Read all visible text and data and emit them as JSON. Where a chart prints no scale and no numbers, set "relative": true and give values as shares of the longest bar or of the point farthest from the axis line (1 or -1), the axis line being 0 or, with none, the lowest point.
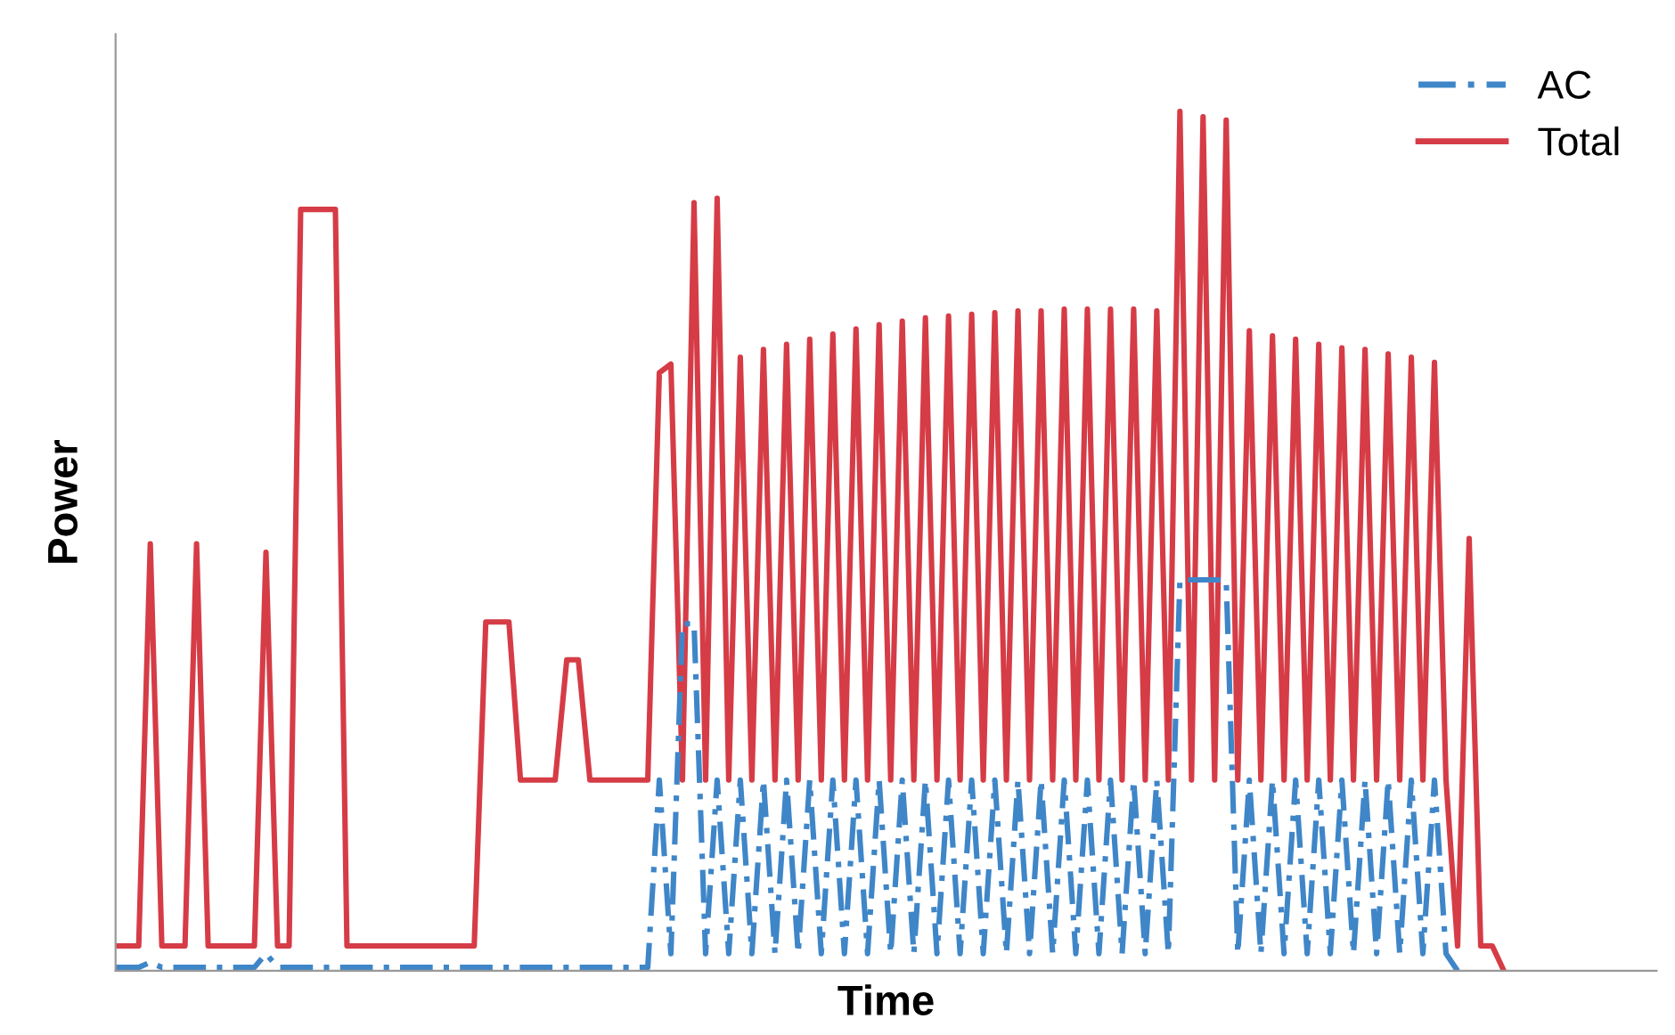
{
  "chart_data": {
    "type": "line",
    "relative": true,
    "xlabel": "Time",
    "ylabel": "Power",
    "categories": [
      null,
      null,
      null,
      null,
      null,
      null,
      null,
      null,
      null,
      null,
      null,
      null,
      null,
      null,
      null,
      null,
      null,
      null,
      null,
      null,
      null,
      null,
      null,
      null,
      null,
      null,
      null,
      null,
      null,
      null,
      null,
      null,
      null,
      null,
      null,
      null,
      null,
      null,
      null,
      null,
      null,
      null,
      null,
      null,
      null,
      null,
      null,
      null,
      null,
      null,
      null,
      null,
      null,
      null,
      null,
      null,
      null,
      null,
      null,
      null,
      null,
      null,
      null,
      null,
      null,
      null,
      null,
      null,
      null,
      null,
      null,
      null,
      null,
      null,
      null,
      null,
      null,
      null,
      null,
      null,
      null,
      null,
      null,
      null,
      null,
      null,
      null,
      null,
      null,
      null,
      null,
      null,
      null,
      null,
      null,
      null,
      null,
      null,
      null,
      null,
      null,
      null,
      null,
      null,
      null,
      null,
      null,
      null,
      null,
      null,
      null,
      null,
      null,
      null,
      null,
      null,
      null,
      null,
      null,
      null,
      null
    ],
    "legend": "top right",
    "series": [
      {
        "name": "AC",
        "color": "#3f86c8",
        "line_style": "dashed",
        "values": [
          0.004,
          0.004,
          0.004,
          0.01,
          0.004,
          0.004,
          0.004,
          0.004,
          0.004,
          0.004,
          0.004,
          0.004,
          0.004,
          0.02,
          0.004,
          0.004,
          0.004,
          0.004,
          0.004,
          0.004,
          0.004,
          0.004,
          0.004,
          0.004,
          0.004,
          0.004,
          0.004,
          0.004,
          0.004,
          0.004,
          0.004,
          0.004,
          0.004,
          0.004,
          0.004,
          0.004,
          0.004,
          0.004,
          0.004,
          0.004,
          0.004,
          0.004,
          0.004,
          0.004,
          0.004,
          0.004,
          0.004,
          0.222,
          0.02,
          0.404,
          0.404,
          0.02,
          0.222,
          0.02,
          0.222,
          0.02,
          0.222,
          0.02,
          0.222,
          0.02,
          0.222,
          0.02,
          0.222,
          0.02,
          0.222,
          0.02,
          0.222,
          0.02,
          0.222,
          0.02,
          0.222,
          0.02,
          0.222,
          0.02,
          0.222,
          0.02,
          0.222,
          0.02,
          0.222,
          0.02,
          0.222,
          0.02,
          0.222,
          0.02,
          0.222,
          0.02,
          0.222,
          0.02,
          0.222,
          0.02,
          0.222,
          0.02,
          0.455,
          0.455,
          0.455,
          0.455,
          0.455,
          0.02,
          0.222,
          0.02,
          0.222,
          0.02,
          0.222,
          0.02,
          0.222,
          0.02,
          0.222,
          0.02,
          0.222,
          0.02,
          0.222,
          0.02,
          0.222,
          0.02,
          0.222,
          0.02,
          0,
          null,
          null,
          null,
          null
        ]
      },
      {
        "name": "Total",
        "color": "#d63c46",
        "line_style": "solid",
        "values": [
          0.029,
          0.029,
          0.029,
          0.497,
          0.029,
          0.029,
          0.029,
          0.497,
          0.029,
          0.029,
          0.029,
          0.029,
          0.029,
          0.487,
          0.029,
          0.029,
          0.886,
          0.886,
          0.886,
          0.886,
          0.029,
          0.029,
          0.029,
          0.029,
          0.029,
          0.029,
          0.029,
          0.029,
          0.029,
          0.029,
          0.029,
          0.029,
          0.406,
          0.406,
          0.406,
          0.222,
          0.222,
          0.222,
          0.222,
          0.362,
          0.362,
          0.222,
          0.222,
          0.222,
          0.222,
          0.222,
          0.222,
          0.696,
          0.706,
          0.222,
          0.894,
          0.222,
          0.899,
          0.222,
          0.714,
          0.222,
          0.723,
          0.222,
          0.729,
          0.222,
          0.735,
          0.222,
          0.741,
          0.222,
          0.747,
          0.222,
          0.752,
          0.222,
          0.756,
          0.222,
          0.76,
          0.222,
          0.762,
          0.222,
          0.764,
          0.222,
          0.766,
          0.222,
          0.768,
          0.222,
          0.768,
          0.222,
          0.77,
          0.222,
          0.77,
          0.222,
          0.77,
          0.222,
          0.77,
          0.222,
          0.768,
          0.222,
          1,
          0.222,
          0.994,
          0.222,
          0.99,
          0.222,
          0.745,
          0.222,
          0.739,
          0.222,
          0.735,
          0.222,
          0.729,
          0.222,
          0.725,
          0.222,
          0.723,
          0.222,
          0.718,
          0.222,
          0.714,
          0.222,
          0.708,
          0.222,
          0.029,
          0.503,
          0.029,
          0.029,
          0
        ]
      }
    ]
  }
}
